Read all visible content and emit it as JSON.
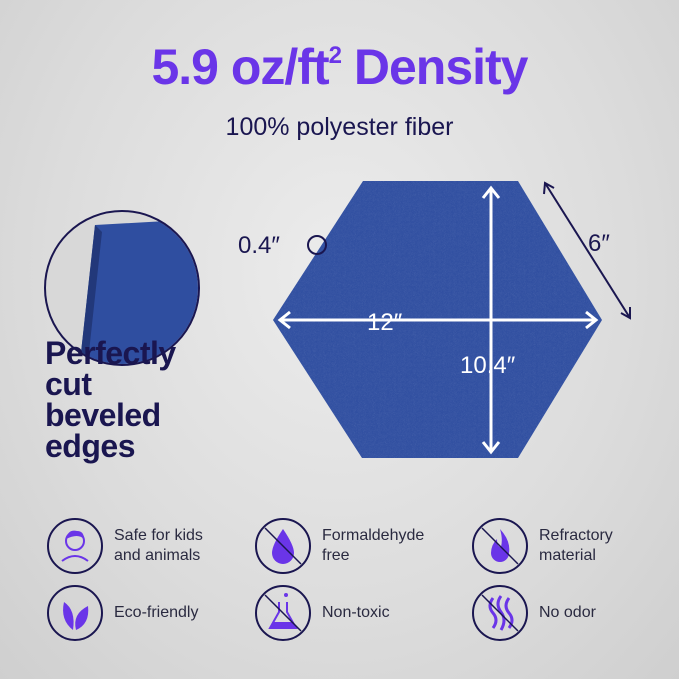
{
  "header": {
    "title_main": "5.9 oz/ft",
    "title_sup": "2",
    "title_end": " Density",
    "subtitle": "100% polyester fiber"
  },
  "dimensions": {
    "thickness": "0.4″",
    "side": "6″",
    "width": "12″",
    "height": "10.4″"
  },
  "edges_label": [
    "Perfectly",
    "cut",
    "beveled",
    "edges"
  ],
  "features": [
    {
      "icon": "child-face-icon",
      "label": "Safe for kids and animals"
    },
    {
      "icon": "no-droplet-icon",
      "label": "Formaldehyde free"
    },
    {
      "icon": "no-fire-icon",
      "label": "Refractory material"
    },
    {
      "icon": "leaf-icon",
      "label": "Eco-friendly"
    },
    {
      "icon": "no-flask-icon",
      "label": "Non-toxic"
    },
    {
      "icon": "no-odor-icon",
      "label": "No odor"
    }
  ],
  "colors": {
    "accent": "#6a35e8",
    "text": "#1a1650",
    "panel": "#2f4ea0"
  }
}
